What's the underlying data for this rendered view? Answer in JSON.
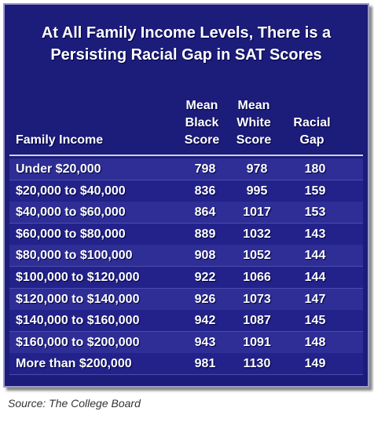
{
  "title": "At All Family Income Levels, There is a Persisting Racial Gap in SAT Scores",
  "header": [
    "Family Income",
    "Mean Black Score",
    "Mean White Score",
    "Racial Gap"
  ],
  "rows": [
    [
      "Under $20,000",
      798,
      978,
      180
    ],
    [
      "$20,000 to $40,000",
      836,
      995,
      159
    ],
    [
      "$40,000 to $60,000",
      864,
      1017,
      153
    ],
    [
      "$60,000 to $80,000",
      889,
      1032,
      143
    ],
    [
      "$80,000 to $100,000",
      908,
      1052,
      144
    ],
    [
      "$100,000 to $120,000",
      922,
      1066,
      144
    ],
    [
      "$120,000 to $140,000",
      926,
      1073,
      147
    ],
    [
      "$140,000 to $160,000",
      942,
      1087,
      145
    ],
    [
      "$160,000 to $200,000",
      943,
      1091,
      148
    ],
    [
      "More than $200,000",
      981,
      1130,
      149
    ]
  ],
  "source": "Source: The College Board"
}
